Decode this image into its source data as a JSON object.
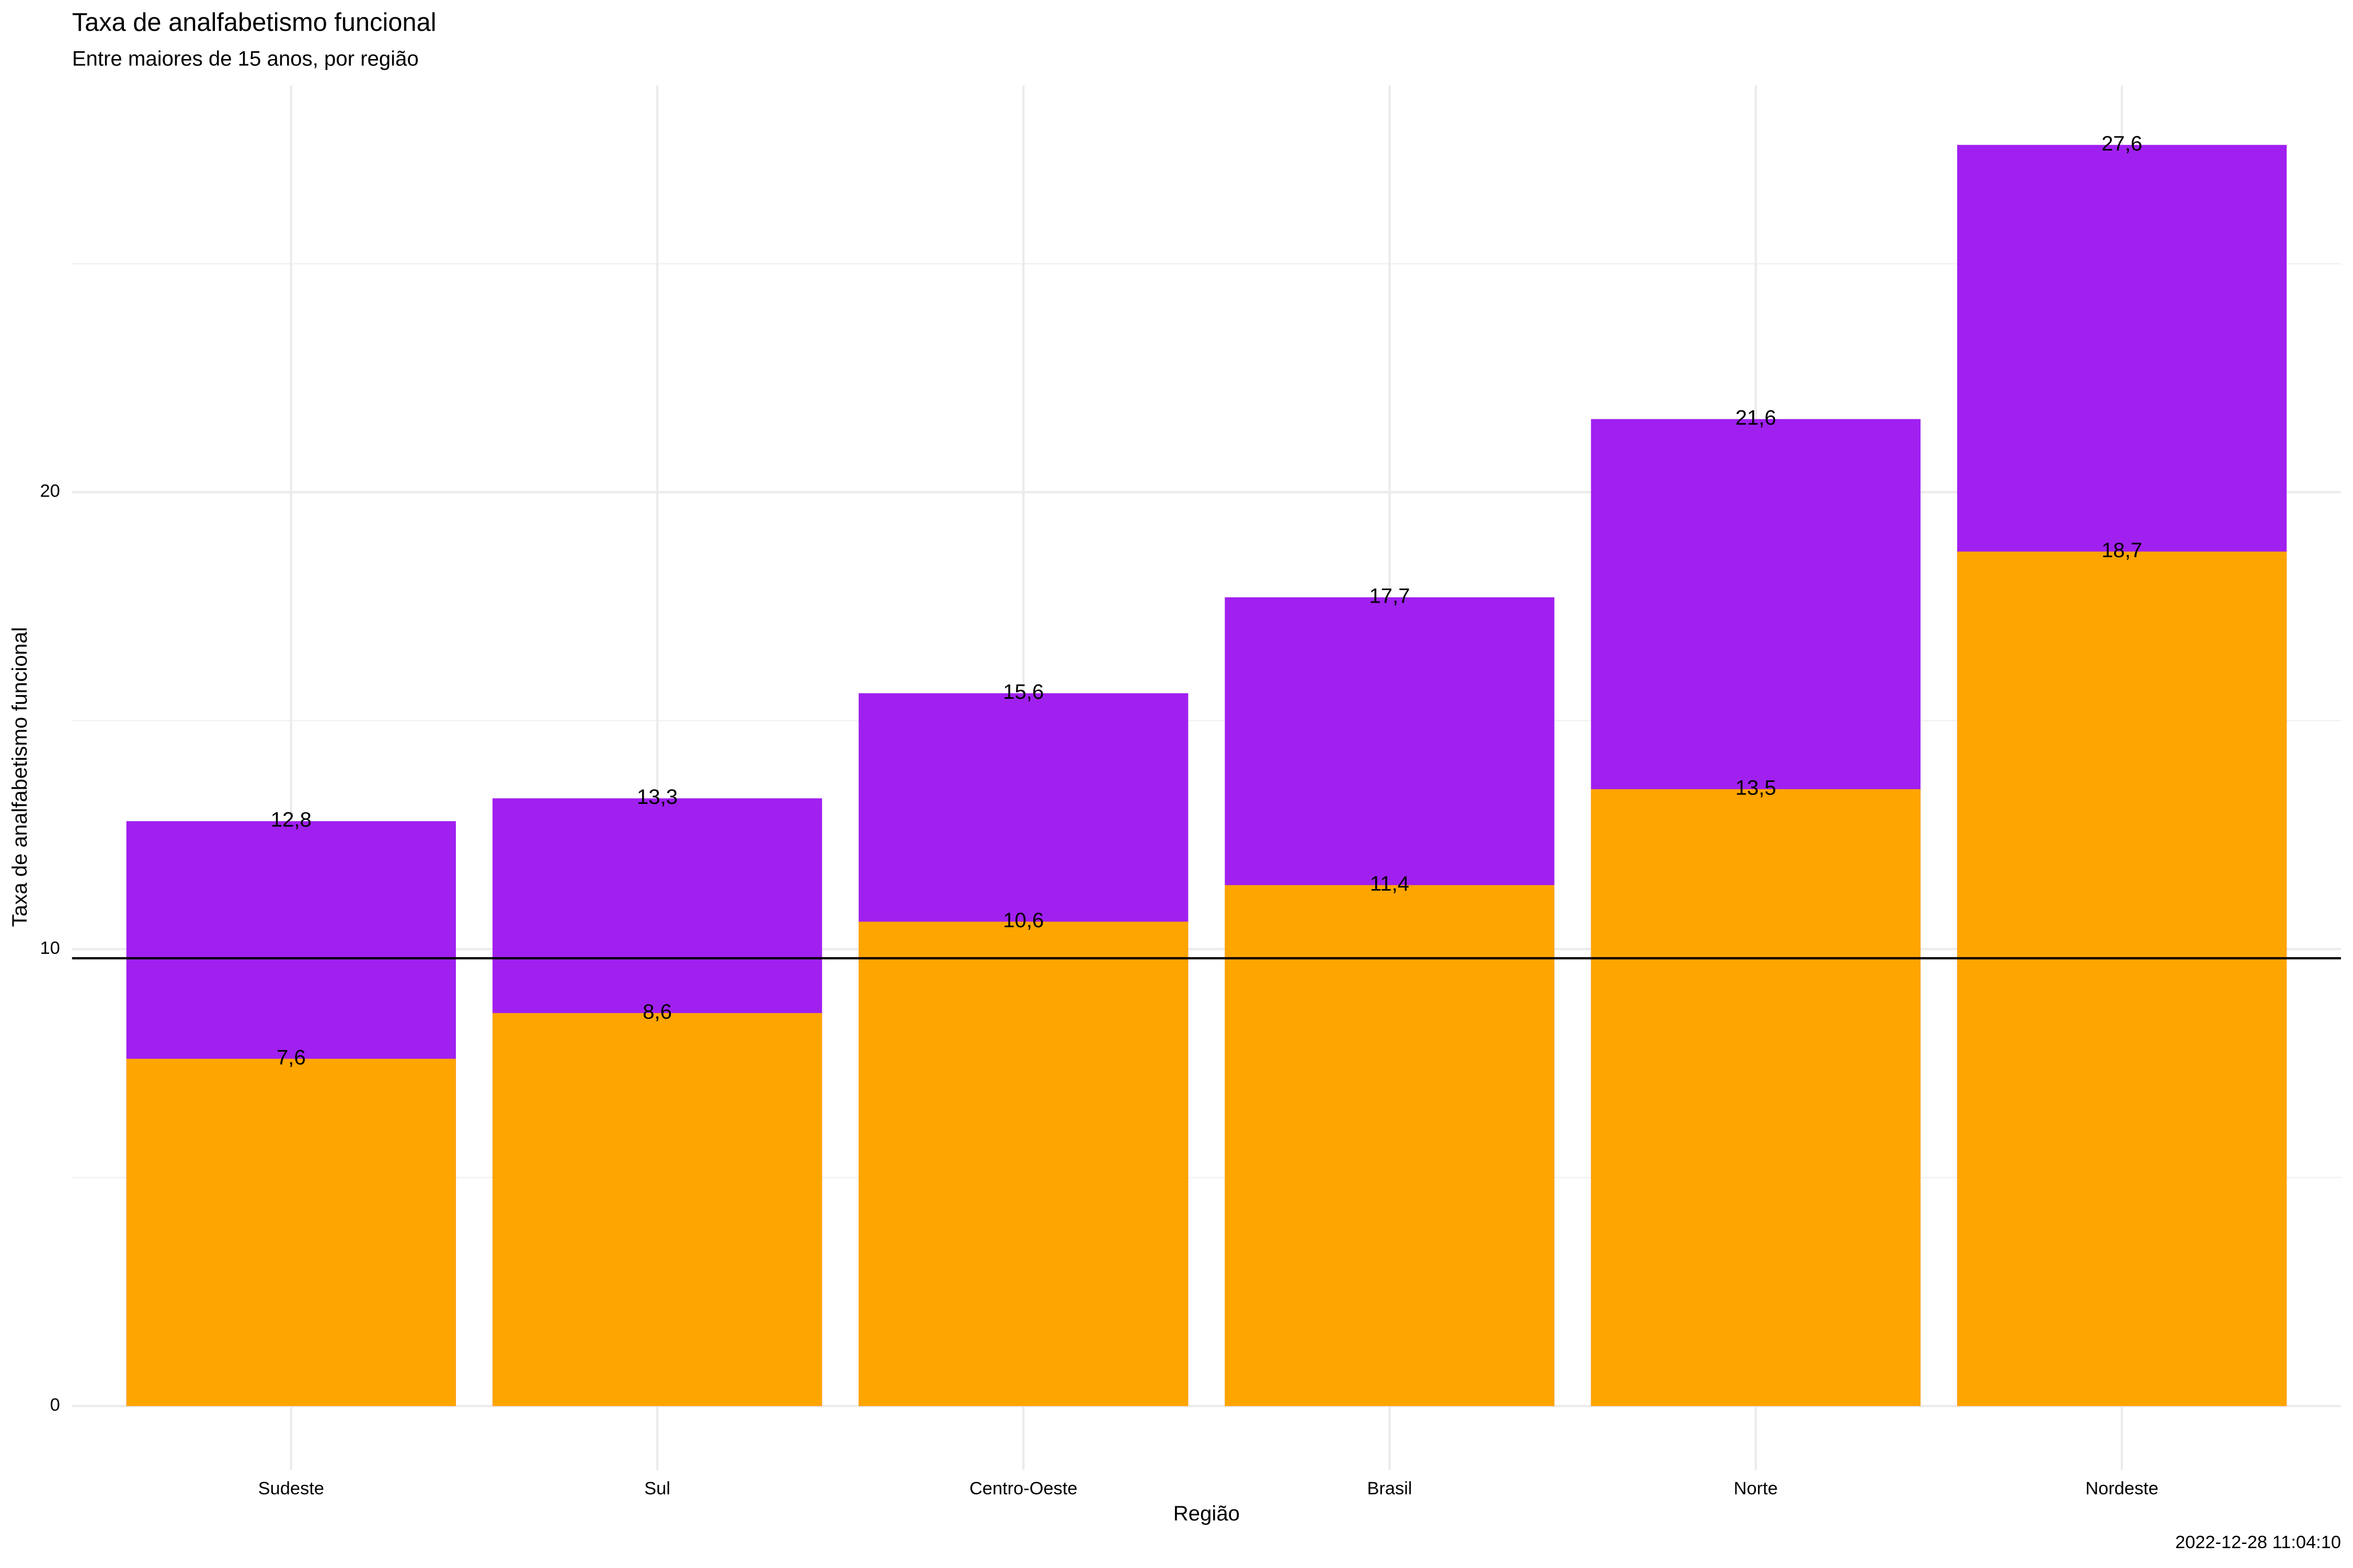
{
  "chart_data": {
    "type": "bar",
    "title": "Taxa de analfabetismo funcional",
    "subtitle": "Entre maiores de 15 anos, por região",
    "x_label": "Região",
    "y_label": "Taxa de analfabetismo funcional",
    "caption": "2022-12-28 11:04:10",
    "categories": [
      "Sudeste",
      "Sul",
      "Centro-Oeste",
      "Brasil",
      "Norte",
      "Nordeste"
    ],
    "series": [
      {
        "color": "#a020f0",
        "values": [
          12.8,
          13.3,
          15.6,
          17.7,
          21.6,
          27.6
        ],
        "value_labels": [
          "12,8",
          "13,3",
          "15,6",
          "17,7",
          "21,6",
          "27,6"
        ]
      },
      {
        "color": "#ffa500",
        "values": [
          7.6,
          8.6,
          10.6,
          11.4,
          13.5,
          18.7
        ],
        "value_labels": [
          "7,6",
          "8,6",
          "10,6",
          "11,4",
          "13,5",
          "18,7"
        ]
      }
    ],
    "overlap": true,
    "hline": 9.8,
    "ylim": [
      -1.4,
      28.9
    ],
    "yticks": [
      0,
      10,
      20
    ],
    "minor_yticks": [
      5,
      15,
      25
    ],
    "grid": true
  }
}
